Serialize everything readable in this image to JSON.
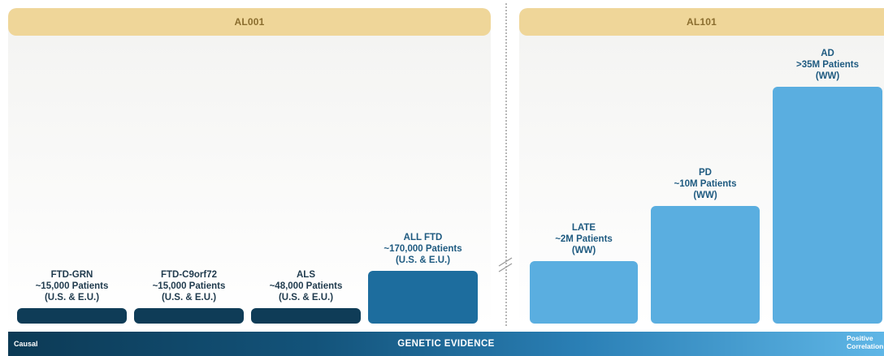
{
  "panels": {
    "left_title": "AL001",
    "right_title": "AL101"
  },
  "evidence_bar": {
    "left_label": "Causal",
    "center_label": "GENETIC EVIDENCE",
    "right_label": [
      "Positive",
      "Correlation"
    ]
  },
  "colors": {
    "header": "#efd699",
    "header_text": "#8a6d2e",
    "dark_navy": "#0f3c57",
    "mid_blue": "#1d6d9e",
    "light_blue": "#5aaee0"
  },
  "chart_data": {
    "type": "bar",
    "note_groups": [
      "AL001",
      "AL101"
    ],
    "bars": [
      {
        "group": "AL001",
        "label": [
          "FTD-GRN",
          "~15,000 Patients",
          "(U.S. & E.U.)"
        ],
        "patients": 15000,
        "color": "#0f3c57"
      },
      {
        "group": "AL001",
        "label": [
          "FTD-C9orf72",
          "~15,000 Patients",
          "(U.S. & E.U.)"
        ],
        "patients": 15000,
        "color": "#0f3c57"
      },
      {
        "group": "AL001",
        "label": [
          "ALS",
          "~48,000 Patients",
          "(U.S. & E.U.)"
        ],
        "patients": 48000,
        "color": "#0f3c57"
      },
      {
        "group": "AL001",
        "label": [
          "ALL FTD",
          "~170,000 Patients",
          "(U.S. & E.U.)"
        ],
        "patients": 170000,
        "color": "#1d6d9e"
      },
      {
        "group": "AL101",
        "label": [
          "LATE",
          "~2M Patients",
          "(WW)"
        ],
        "patients": 2000000,
        "color": "#5aaee0"
      },
      {
        "group": "AL101",
        "label": [
          "PD",
          "~10M Patients",
          "(WW)"
        ],
        "patients": 10000000,
        "color": "#5aaee0"
      },
      {
        "group": "AL101",
        "label": [
          "AD",
          ">35M Patients",
          "(WW)"
        ],
        "patients": 35000000,
        "color": "#5aaee0"
      }
    ],
    "axis_break": true,
    "grid": false
  }
}
